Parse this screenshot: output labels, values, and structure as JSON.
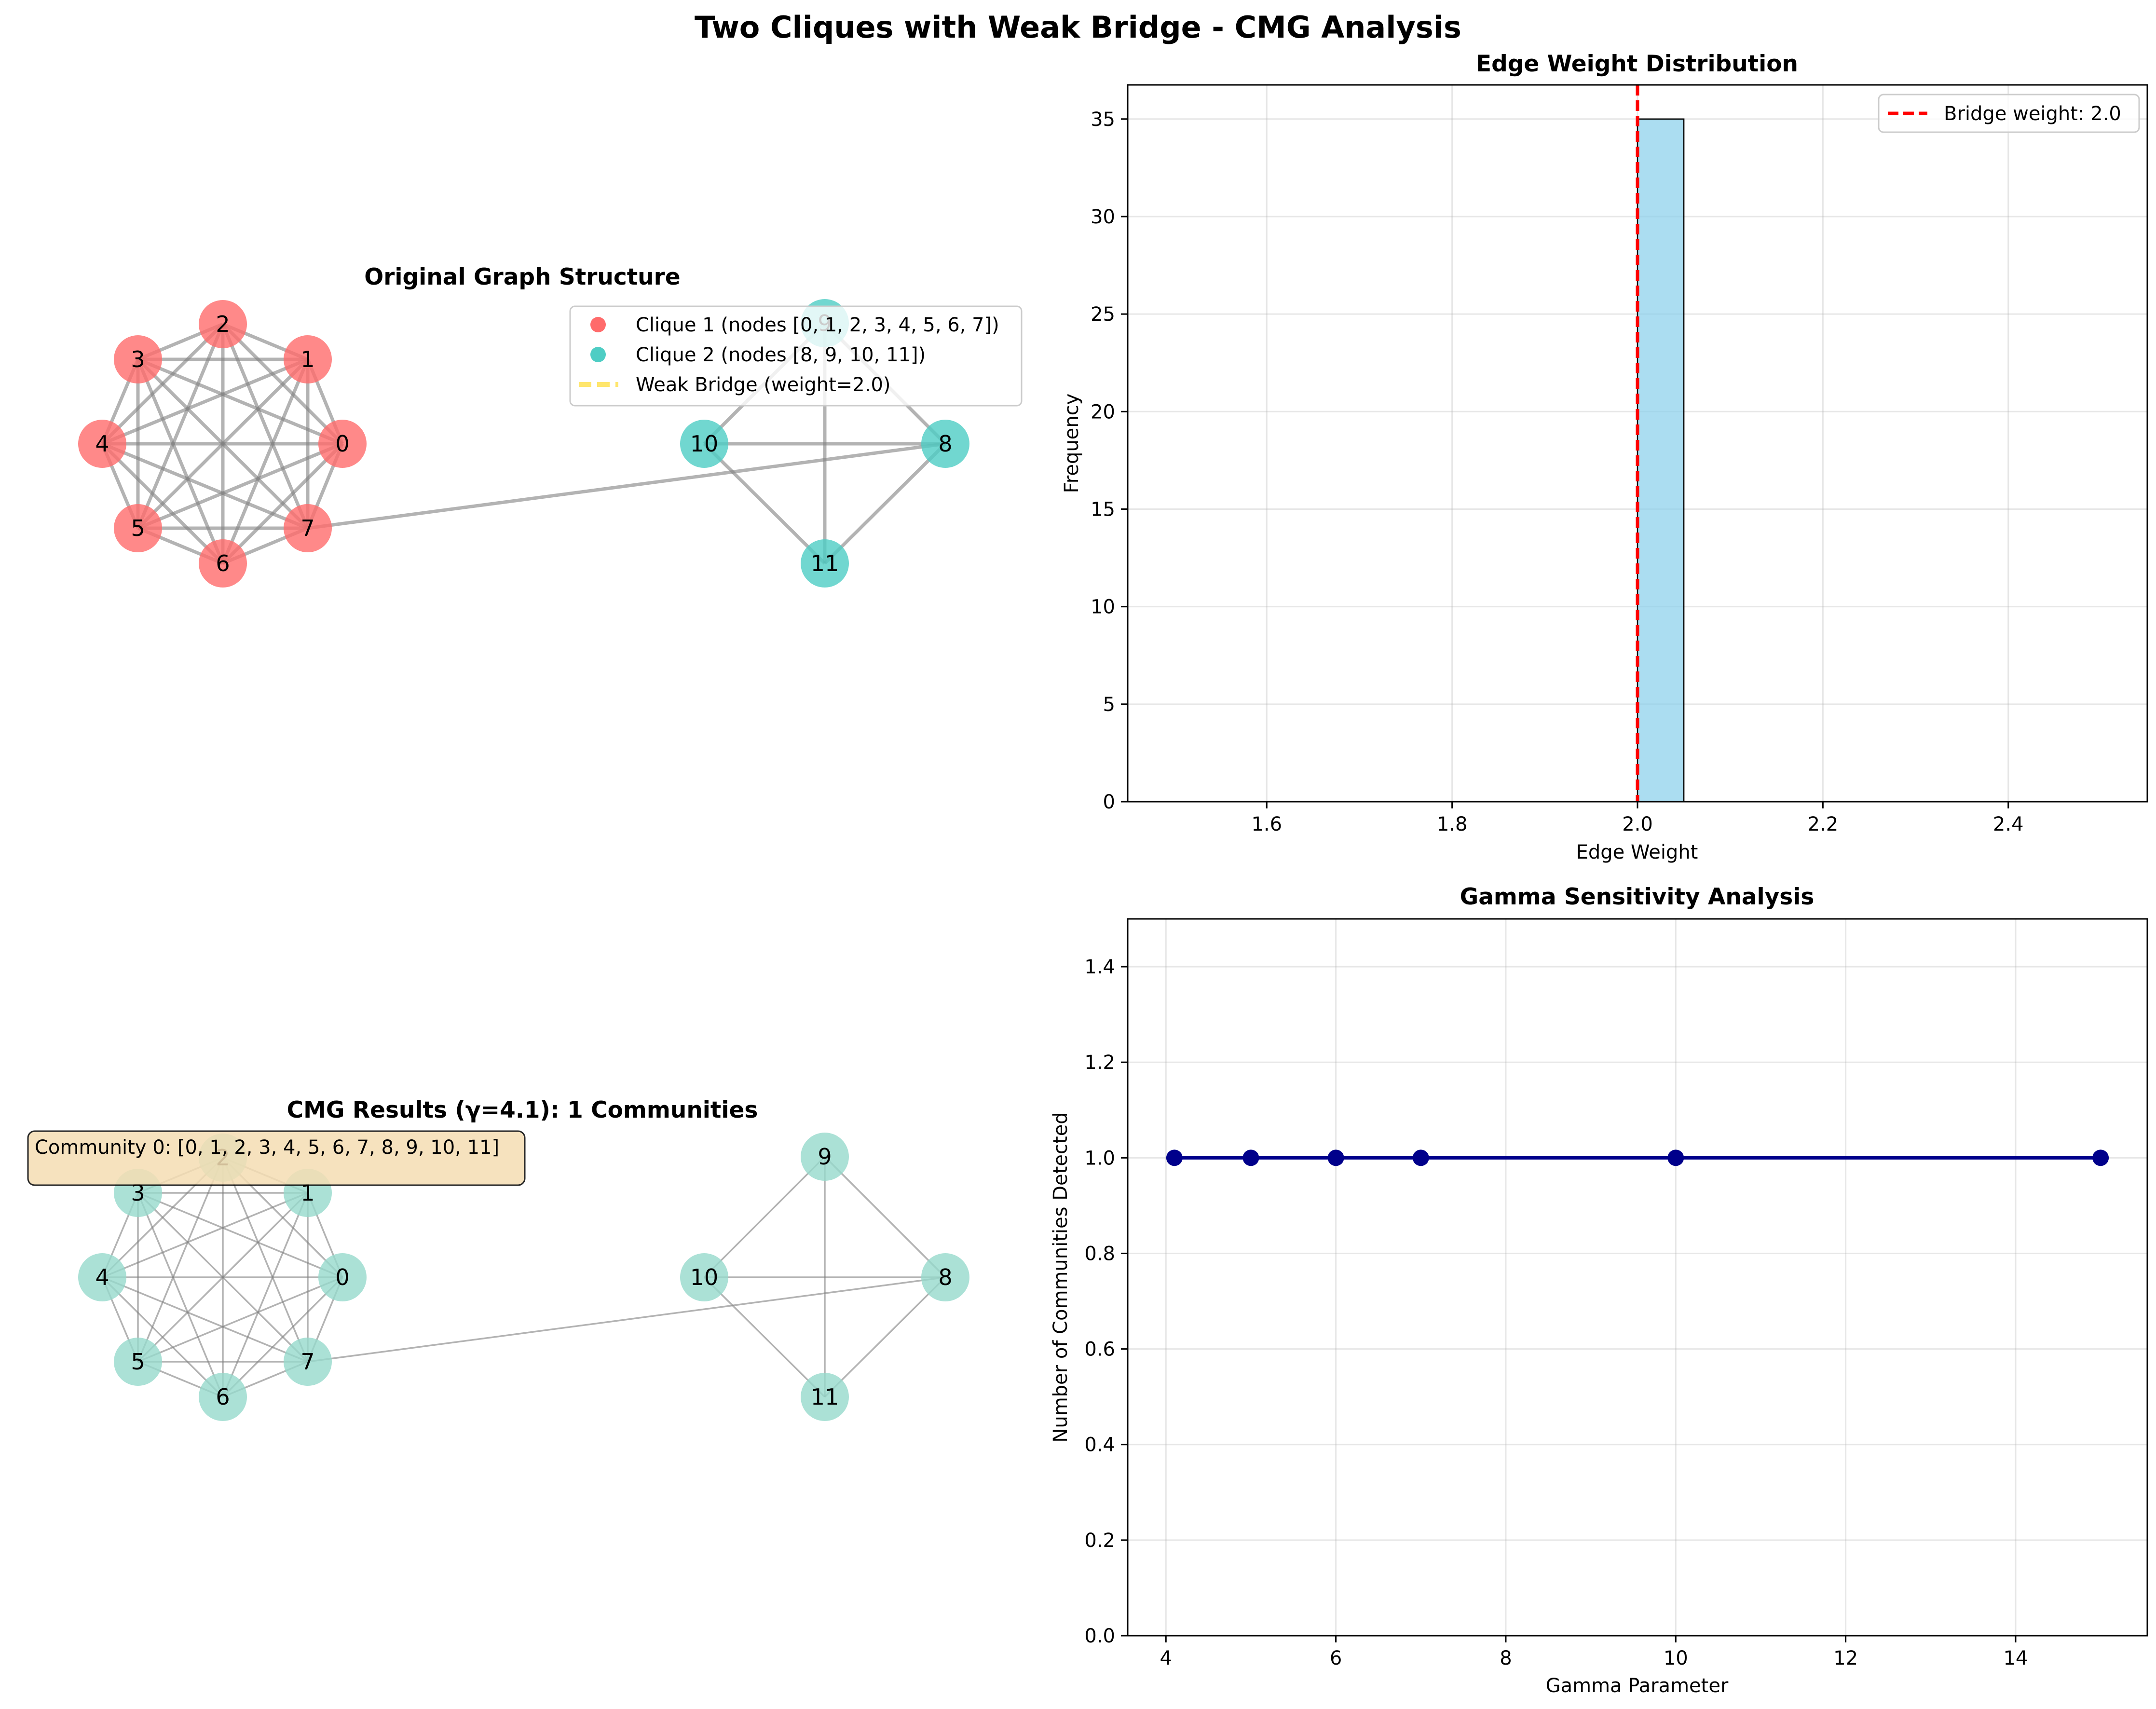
{
  "figure": {
    "suptitle": "Two Cliques with Weak Bridge - CMG Analysis"
  },
  "chart_data": [
    {
      "id": "original-graph",
      "type": "network",
      "title": "Original Graph Structure",
      "nodes": [
        {
          "id": "0",
          "group": 1
        },
        {
          "id": "1",
          "group": 1
        },
        {
          "id": "2",
          "group": 1
        },
        {
          "id": "3",
          "group": 1
        },
        {
          "id": "4",
          "group": 1
        },
        {
          "id": "5",
          "group": 1
        },
        {
          "id": "6",
          "group": 1
        },
        {
          "id": "7",
          "group": 1
        },
        {
          "id": "8",
          "group": 2
        },
        {
          "id": "9",
          "group": 2
        },
        {
          "id": "10",
          "group": 2
        },
        {
          "id": "11",
          "group": 2
        }
      ],
      "cliques": [
        [
          "0",
          "1",
          "2",
          "3",
          "4",
          "5",
          "6",
          "7"
        ],
        [
          "8",
          "9",
          "10",
          "11"
        ]
      ],
      "bridge": [
        "7",
        "8"
      ],
      "colors": {
        "clique1": "#ff6b6b",
        "clique2": "#4ecdc4",
        "bridge": "#ffe66d",
        "edge": "#808080"
      },
      "legend": [
        {
          "label": "Clique 1 (nodes [0, 1, 2, 3, 4, 5, 6, 7])",
          "color": "#ff6b6b",
          "kind": "marker"
        },
        {
          "label": "Clique 2 (nodes [8, 9, 10, 11])",
          "color": "#4ecdc4",
          "kind": "marker"
        },
        {
          "label": "Weak Bridge (weight=2.0)",
          "color": "#ffe66d",
          "kind": "dashed-line"
        }
      ],
      "legend_position": "upper-right"
    },
    {
      "id": "edge-weight-histogram",
      "type": "bar",
      "title": "Edge Weight Distribution",
      "xlabel": "Edge Weight",
      "ylabel": "Frequency",
      "xlim": [
        1.45,
        2.55
      ],
      "ylim": [
        0,
        36.75
      ],
      "xticks": [
        "1.6",
        "1.8",
        "2.0",
        "2.2",
        "2.4"
      ],
      "xtick_values": [
        1.6,
        1.8,
        2.0,
        2.2,
        2.4
      ],
      "yticks": [
        "0",
        "5",
        "10",
        "15",
        "20",
        "25",
        "30",
        "35"
      ],
      "ytick_values": [
        0,
        5,
        10,
        15,
        20,
        25,
        30,
        35
      ],
      "bin_edges": [
        1.5,
        1.55,
        1.6,
        1.65,
        1.7,
        1.75,
        1.8,
        1.85,
        1.9,
        1.95,
        2.0,
        2.05,
        2.1,
        2.15,
        2.2,
        2.25,
        2.3,
        2.35,
        2.4,
        2.45,
        2.5
      ],
      "counts": [
        0,
        0,
        0,
        0,
        0,
        0,
        0,
        0,
        0,
        0,
        35,
        0,
        0,
        0,
        0,
        0,
        0,
        0,
        0,
        0
      ],
      "bar_color": "#87ceeb",
      "reference_line": {
        "x": 2.0,
        "label": "Bridge weight: 2.0",
        "color": "#ff0000"
      },
      "legend_position": "upper-right",
      "grid": true
    },
    {
      "id": "cmg-results",
      "type": "network",
      "title": "CMG Results (γ=4.1): 1 Communities",
      "nodes": [
        "0",
        "1",
        "2",
        "3",
        "4",
        "5",
        "6",
        "7",
        "8",
        "9",
        "10",
        "11"
      ],
      "community_color": "#96d9cc",
      "annotation": "Community 0: [0, 1, 2, 3, 4, 5, 6, 7, 8, 9, 10, 11]",
      "annotation_bg": "#f5deb3"
    },
    {
      "id": "gamma-sensitivity",
      "type": "line",
      "title": "Gamma Sensitivity Analysis",
      "xlabel": "Gamma Parameter",
      "ylabel": "Number of Communities Detected",
      "x": [
        4.1,
        5,
        6,
        7,
        10,
        15
      ],
      "y": [
        1,
        1,
        1,
        1,
        1,
        1
      ],
      "xlim": [
        3.55,
        15.55
      ],
      "ylim": [
        0,
        1.5
      ],
      "xticks": [
        "4",
        "6",
        "8",
        "10",
        "12",
        "14"
      ],
      "xtick_values": [
        4,
        6,
        8,
        10,
        12,
        14
      ],
      "yticks": [
        "0.0",
        "0.2",
        "0.4",
        "0.6",
        "0.8",
        "1.0",
        "1.2",
        "1.4"
      ],
      "ytick_values": [
        0,
        0.2,
        0.4,
        0.6,
        0.8,
        1.0,
        1.2,
        1.4
      ],
      "line_color": "#00008b",
      "grid": true
    }
  ]
}
